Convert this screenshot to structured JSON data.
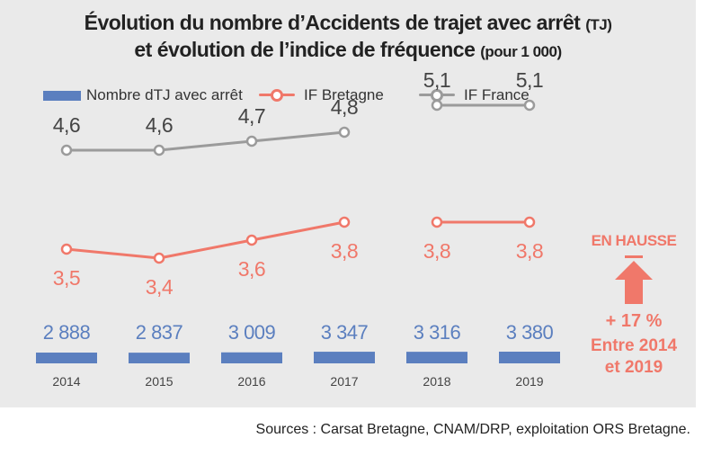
{
  "title": {
    "line1_main": "Évolution du nombre d’Accidents de trajet avec arrêt",
    "line1_suffix": "(TJ)",
    "line2_main": "et évolution de l’indice de fréquence",
    "line2_suffix": "(pour 1 000)"
  },
  "legend": {
    "bar": "Nombre dTJ avec arrêt",
    "bretagne": "IF Bretagne",
    "france": "IF France"
  },
  "colors": {
    "bar": "#5b7fbf",
    "bretagne": "#f0786a",
    "france": "#9b9b9b",
    "panel": "#eaeaea",
    "accent": "#f0786a"
  },
  "chart_data": {
    "type": "bar",
    "categories": [
      "2014",
      "2015",
      "2016",
      "2017",
      "2018",
      "2019"
    ],
    "series": [
      {
        "name": "Nombre dTJ avec arrêt",
        "values": [
          2888,
          2837,
          3009,
          3347,
          3316,
          3380
        ],
        "labels": [
          "2 888",
          "2 837",
          "3 009",
          "3 347",
          "3 316",
          "3 380"
        ]
      },
      {
        "name": "IF Bretagne",
        "kind": "line",
        "values": [
          3.5,
          3.4,
          3.6,
          3.8,
          3.8,
          3.8
        ],
        "labels": [
          "3,5",
          "3,4",
          "3,6",
          "3,8",
          "3,8",
          "3,8"
        ]
      },
      {
        "name": "IF France",
        "kind": "line",
        "values": [
          4.6,
          4.6,
          4.7,
          4.8,
          5.1,
          5.1
        ],
        "labels": [
          "4,6",
          "4,6",
          "4,7",
          "4,8",
          "5,1",
          "5,1"
        ]
      }
    ],
    "line_break_after_index": 3,
    "xlabel": "",
    "ylabel": ""
  },
  "note": {
    "title": "EN HAUSSE",
    "icon": "up-arrow-icon",
    "pct": "+ 17 %",
    "line2": "Entre 2014",
    "line3": "et 2019"
  },
  "source": "Sources : Carsat Bretagne, CNAM/DRP, exploitation ORS Bretagne."
}
